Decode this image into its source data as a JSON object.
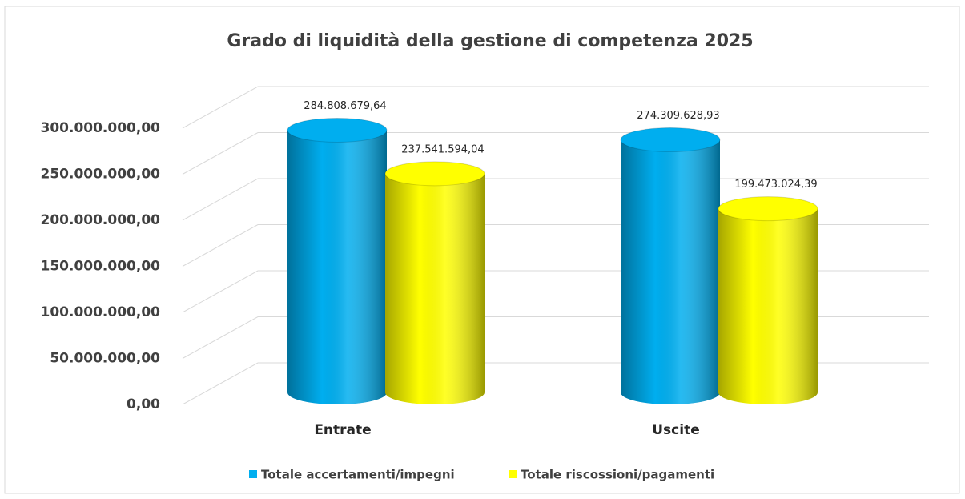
{
  "chart_data": {
    "type": "bar3d",
    "title": "Grado di liquidità della gestione di competenza 2025",
    "categories": [
      "Entrate",
      "Uscite"
    ],
    "series": [
      {
        "name": "Totale accertamenti/impegni",
        "color": "#00aeef",
        "values": [
          284808679.64,
          274309628.93
        ],
        "value_labels": [
          "284.808.679,64",
          "274.309.628,93"
        ]
      },
      {
        "name": "Totale riscossioni/pagamenti",
        "color": "#ffff00",
        "values": [
          237541594.04,
          199473024.39
        ],
        "value_labels": [
          "237.541.594,04",
          "199.473.024,39"
        ]
      }
    ],
    "ylim": [
      0,
      300000000
    ],
    "yticks": [
      {
        "value": 0,
        "label": "0,00"
      },
      {
        "value": 50000000,
        "label": "50.000.000,00"
      },
      {
        "value": 100000000,
        "label": "100.000.000,00"
      },
      {
        "value": 150000000,
        "label": "150.000.000,00"
      },
      {
        "value": 200000000,
        "label": "200.000.000,00"
      },
      {
        "value": 250000000,
        "label": "250.000.000,00"
      },
      {
        "value": 300000000,
        "label": "300.000.000,00"
      }
    ],
    "grid": true,
    "legend": "bottom"
  }
}
